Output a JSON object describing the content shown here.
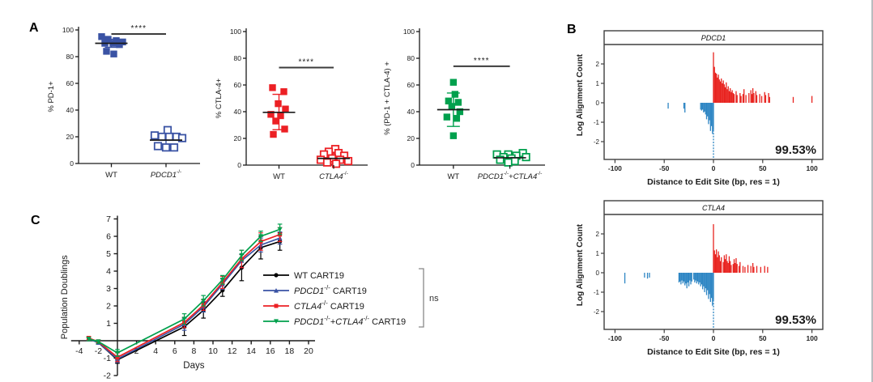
{
  "page": {
    "background": "#ffffff"
  },
  "panel_labels": {
    "A": "A",
    "B": "B",
    "C": "C"
  },
  "colors": {
    "blue": "#3a53a4",
    "red": "#ec2024",
    "green": "#00a04d",
    "hist_pos": "#e8231f",
    "hist_neg": "#2e86c4",
    "axis": "#1a1a1a",
    "sig_line": "#3c3c3c",
    "black": "#000000"
  },
  "chart_data": [
    {
      "id": "pd1-scatter",
      "type": "scatter",
      "ylabel": "% PD-1+",
      "ylim": [
        0,
        100
      ],
      "yticks": [
        0,
        20,
        40,
        60,
        80,
        100
      ],
      "color": "#3a53a4",
      "significance": {
        "label": "****",
        "line_y": 97
      },
      "groups": [
        {
          "label_parts": [
            {
              "t": "WT"
            }
          ],
          "filled": true,
          "mean": 90,
          "err_top": 93,
          "err_bot": 87,
          "points": [
            [
              95,
              -12
            ],
            [
              93,
              -4
            ],
            [
              92,
              6
            ],
            [
              91,
              14
            ],
            [
              90,
              -8
            ],
            [
              90,
              2
            ],
            [
              89,
              10
            ],
            [
              84,
              -6
            ],
            [
              82,
              3
            ]
          ]
        },
        {
          "label_parts": [
            {
              "t": "PDCD1",
              "i": true
            },
            {
              "t": "-/-",
              "sup": true
            }
          ],
          "filled": false,
          "mean": 17.5,
          "err_top": 22,
          "err_bot": 13,
          "points": [
            [
              25,
              2
            ],
            [
              21,
              -14
            ],
            [
              20,
              -5
            ],
            [
              20,
              4
            ],
            [
              20,
              13
            ],
            [
              19,
              20
            ],
            [
              13,
              -10
            ],
            [
              12,
              0
            ],
            [
              12,
              10
            ]
          ]
        }
      ]
    },
    {
      "id": "ctla4-scatter",
      "type": "scatter",
      "ylabel": "% CTLA-4+",
      "ylim": [
        0,
        100
      ],
      "yticks": [
        0,
        20,
        40,
        60,
        80,
        100
      ],
      "color": "#ec2024",
      "significance": {
        "label": "****",
        "line_y": 73
      },
      "groups": [
        {
          "label_parts": [
            {
              "t": "WT"
            }
          ],
          "filled": true,
          "mean": 39.5,
          "err_top": 53,
          "err_bot": 26.5,
          "points": [
            [
              58,
              -8
            ],
            [
              55,
              6
            ],
            [
              46,
              -1
            ],
            [
              42,
              8
            ],
            [
              38,
              -10
            ],
            [
              37,
              2
            ],
            [
              33,
              -4
            ],
            [
              27,
              7
            ],
            [
              23,
              -7
            ]
          ]
        },
        {
          "label_parts": [
            {
              "t": "CTLA4",
              "i": true
            },
            {
              "t": "-/-",
              "sup": true
            }
          ],
          "filled": false,
          "mean": 5,
          "err_top": 9,
          "err_bot": 1,
          "points": [
            [
              12,
              2
            ],
            [
              10,
              -6
            ],
            [
              9,
              6
            ],
            [
              8,
              -12
            ],
            [
              7,
              13
            ],
            [
              5,
              -2
            ],
            [
              4,
              -16
            ],
            [
              4,
              8
            ],
            [
              3,
              18
            ],
            [
              2,
              -8
            ],
            [
              1,
              3
            ]
          ]
        }
      ]
    },
    {
      "id": "double-ko-scatter",
      "type": "scatter",
      "ylabel": "% (PD-1 + CTLA-4) +",
      "ylim": [
        0,
        100
      ],
      "yticks": [
        0,
        20,
        40,
        60,
        80,
        100
      ],
      "color": "#00a04d",
      "significance": {
        "label": "****",
        "line_y": 74
      },
      "groups": [
        {
          "label_parts": [
            {
              "t": "WT"
            }
          ],
          "filled": true,
          "mean": 41.5,
          "err_top": 54,
          "err_bot": 29,
          "points": [
            [
              62,
              0
            ],
            [
              53,
              2
            ],
            [
              48,
              -6
            ],
            [
              47,
              6
            ],
            [
              44,
              -2
            ],
            [
              40,
              8
            ],
            [
              36,
              -8
            ],
            [
              35,
              4
            ],
            [
              22,
              0
            ]
          ]
        },
        {
          "label_parts": [
            {
              "t": "PDCD1",
              "i": true
            },
            {
              "t": "-/-",
              "sup": true
            },
            {
              "t": "+"
            },
            {
              "t": "CTLA4",
              "i": true
            },
            {
              "t": "-/-",
              "sup": true
            }
          ],
          "filled": false,
          "mean": 5.5,
          "err_top": 8.5,
          "err_bot": 2.5,
          "points": [
            [
              9,
              16
            ],
            [
              8,
              -16
            ],
            [
              8,
              -2
            ],
            [
              7,
              8
            ],
            [
              6,
              -8
            ],
            [
              6,
              20
            ],
            [
              5,
              2
            ],
            [
              4,
              -12
            ],
            [
              3,
              6
            ],
            [
              2,
              -2
            ]
          ]
        }
      ]
    },
    {
      "id": "pdcd1-hist",
      "type": "hist",
      "title": "PDCD1",
      "ylabel": "Log Alignment Count",
      "xlabel": "Distance to Edit Site (bp, res = 1)",
      "annotation": "99.53%",
      "xlim": [
        -110,
        112
      ],
      "xticks": [
        -100,
        -50,
        0,
        50,
        100
      ],
      "yticks": [
        2,
        1,
        0,
        -1,
        -2
      ],
      "pos_color": "#e8231f",
      "neg_color": "#2e86c4",
      "pos_bars": [
        [
          0,
          2.6
        ],
        [
          1,
          1.85
        ],
        [
          2,
          1.55
        ],
        [
          3,
          1.5
        ],
        [
          4,
          1.3
        ],
        [
          5,
          1.45
        ],
        [
          6,
          1.2
        ],
        [
          7,
          1.1
        ],
        [
          8,
          1.25
        ],
        [
          9,
          1.0
        ],
        [
          10,
          1.15
        ],
        [
          11,
          0.95
        ],
        [
          12,
          0.8
        ],
        [
          13,
          1.05
        ],
        [
          14,
          0.7
        ],
        [
          15,
          0.85
        ],
        [
          16,
          0.6
        ],
        [
          17,
          0.75
        ],
        [
          18,
          0.55
        ],
        [
          19,
          0.65
        ],
        [
          20,
          0.5
        ],
        [
          21,
          0.45
        ],
        [
          23,
          0.6
        ],
        [
          24,
          0.4
        ],
        [
          27,
          0.5
        ],
        [
          28,
          0.35
        ],
        [
          30,
          0.45
        ],
        [
          31,
          0.7
        ],
        [
          33,
          0.4
        ],
        [
          36,
          0.5
        ],
        [
          38,
          0.65
        ],
        [
          39,
          0.45
        ],
        [
          40,
          0.75
        ],
        [
          41,
          0.5
        ],
        [
          43,
          0.6
        ],
        [
          44,
          0.4
        ],
        [
          47,
          0.45
        ],
        [
          49,
          0.35
        ],
        [
          52,
          0.55
        ],
        [
          53,
          0.4
        ],
        [
          56,
          0.5
        ],
        [
          57,
          0.3
        ],
        [
          81,
          0.3
        ],
        [
          100,
          0.35
        ]
      ],
      "neg_bars": [
        [
          0,
          -2.85
        ],
        [
          -1,
          -1.6
        ],
        [
          -2,
          -1.2
        ],
        [
          -3,
          -1.45
        ],
        [
          -4,
          -0.9
        ],
        [
          -5,
          -1.1
        ],
        [
          -6,
          -0.7
        ],
        [
          -7,
          -0.85
        ],
        [
          -8,
          -0.6
        ],
        [
          -9,
          -0.45
        ],
        [
          -10,
          -0.5
        ],
        [
          -11,
          -0.35
        ],
        [
          -12,
          -0.4
        ],
        [
          -13,
          -0.35
        ],
        [
          -29,
          -0.5
        ],
        [
          -30,
          -0.3
        ],
        [
          -46,
          -0.3
        ]
      ]
    },
    {
      "id": "ctla4-hist",
      "type": "hist",
      "title": "CTLA4",
      "ylabel": "Log Alignment Count",
      "xlabel": "Distance to Edit Site (bp, res = 1)",
      "annotation": "99.53%",
      "xlim": [
        -110,
        112
      ],
      "xticks": [
        -100,
        -50,
        0,
        50,
        100
      ],
      "yticks": [
        2,
        1,
        0,
        -1,
        -2
      ],
      "pos_color": "#e8231f",
      "neg_color": "#2e86c4",
      "pos_bars": [
        [
          0,
          2.5
        ],
        [
          1,
          1.15
        ],
        [
          2,
          0.95
        ],
        [
          3,
          1.2
        ],
        [
          4,
          0.8
        ],
        [
          5,
          1.1
        ],
        [
          6,
          0.9
        ],
        [
          7,
          0.6
        ],
        [
          8,
          0.8
        ],
        [
          10,
          0.55
        ],
        [
          11,
          0.9
        ],
        [
          12,
          0.7
        ],
        [
          13,
          0.95
        ],
        [
          14,
          0.6
        ],
        [
          15,
          0.5
        ],
        [
          16,
          0.85
        ],
        [
          17,
          0.6
        ],
        [
          18,
          0.4
        ],
        [
          20,
          0.45
        ],
        [
          21,
          0.7
        ],
        [
          22,
          0.5
        ],
        [
          23,
          0.75
        ],
        [
          24,
          0.45
        ],
        [
          26,
          0.35
        ],
        [
          27,
          0.55
        ],
        [
          30,
          0.35
        ],
        [
          32,
          0.3
        ],
        [
          35,
          0.4
        ],
        [
          38,
          0.35
        ],
        [
          40,
          0.5
        ],
        [
          41,
          0.3
        ],
        [
          44,
          0.35
        ],
        [
          48,
          0.3
        ],
        [
          52,
          0.35
        ],
        [
          55,
          0.3
        ]
      ],
      "neg_bars": [
        [
          0,
          -2.9
        ],
        [
          -1,
          -1.7
        ],
        [
          -2,
          -1.3
        ],
        [
          -3,
          -1.5
        ],
        [
          -4,
          -1.1
        ],
        [
          -5,
          -1.35
        ],
        [
          -6,
          -0.9
        ],
        [
          -7,
          -1.15
        ],
        [
          -8,
          -0.8
        ],
        [
          -9,
          -1.0
        ],
        [
          -10,
          -0.7
        ],
        [
          -11,
          -0.85
        ],
        [
          -12,
          -0.6
        ],
        [
          -13,
          -0.7
        ],
        [
          -14,
          -0.5
        ],
        [
          -15,
          -0.6
        ],
        [
          -16,
          -0.45
        ],
        [
          -17,
          -0.55
        ],
        [
          -18,
          -0.4
        ],
        [
          -19,
          -0.5
        ],
        [
          -20,
          -0.35
        ],
        [
          -22,
          -0.45
        ],
        [
          -23,
          -0.6
        ],
        [
          -24,
          -0.4
        ],
        [
          -25,
          -0.7
        ],
        [
          -26,
          -0.5
        ],
        [
          -27,
          -0.8
        ],
        [
          -28,
          -0.55
        ],
        [
          -29,
          -0.65
        ],
        [
          -30,
          -0.45
        ],
        [
          -31,
          -0.55
        ],
        [
          -32,
          -0.4
        ],
        [
          -33,
          -0.6
        ],
        [
          -34,
          -0.45
        ],
        [
          -35,
          -0.5
        ],
        [
          -65,
          -0.25
        ],
        [
          -67,
          -0.3
        ],
        [
          -70,
          -0.25
        ],
        [
          -90,
          -0.55
        ]
      ]
    },
    {
      "id": "growth-line",
      "type": "line",
      "ylabel": "Population Doublings",
      "xlabel": "Days",
      "xlim": [
        -4,
        20
      ],
      "ylim": [
        -2,
        7
      ],
      "xticks": [
        -4,
        -2,
        2,
        4,
        6,
        8,
        10,
        12,
        14,
        16,
        18,
        20
      ],
      "yticks": [
        -2,
        -1,
        1,
        2,
        3,
        4,
        5,
        6,
        7
      ],
      "x": [
        -3,
        -2,
        0,
        7,
        9,
        11,
        13,
        15,
        17
      ],
      "series": [
        {
          "name_parts": [
            {
              "t": "WT CART19"
            }
          ],
          "color": "#000000",
          "marker": "circle",
          "values": [
            0.1,
            -0.1,
            -1.1,
            0.8,
            1.75,
            2.9,
            4.2,
            5.35,
            5.7
          ],
          "errors": [
            0.1,
            0.1,
            0.2,
            0.5,
            0.45,
            0.35,
            0.75,
            0.65,
            0.5
          ]
        },
        {
          "name_parts": [
            {
              "t": "PDCD1",
              "i": true
            },
            {
              "t": "-/-",
              "sup": true
            },
            {
              "t": " CART19"
            }
          ],
          "color": "#3a53a4",
          "marker": "triangle",
          "values": [
            0.1,
            -0.1,
            -1.05,
            0.95,
            1.95,
            3.25,
            4.6,
            5.5,
            5.9
          ],
          "errors": [
            0.1,
            0.1,
            0.2,
            0.35,
            0.3,
            0.3,
            0.4,
            0.4,
            0.35
          ]
        },
        {
          "name_parts": [
            {
              "t": "CTLA4",
              "i": true
            },
            {
              "t": "-/-",
              "sup": true
            },
            {
              "t": " CART19"
            }
          ],
          "color": "#ec2024",
          "marker": "square",
          "values": [
            0.15,
            -0.05,
            -0.95,
            1.05,
            2.05,
            3.35,
            4.7,
            5.7,
            6.1
          ],
          "errors": [
            0.1,
            0.1,
            0.25,
            0.3,
            0.3,
            0.35,
            0.5,
            0.5,
            0.4
          ]
        },
        {
          "name_parts": [
            {
              "t": "PDCD1",
              "i": true
            },
            {
              "t": "-/-",
              "sup": true
            },
            {
              "t": "+"
            },
            {
              "t": "CTLA4",
              "i": true
            },
            {
              "t": "-/-",
              "sup": true
            },
            {
              "t": " CART19"
            }
          ],
          "color": "#00a04d",
          "marker": "triangle-down",
          "values": [
            0.1,
            -0.05,
            -0.7,
            1.25,
            2.3,
            3.5,
            4.9,
            6.0,
            6.4
          ],
          "errors": [
            0.1,
            0.1,
            0.2,
            0.3,
            0.3,
            0.25,
            0.3,
            0.3,
            0.3
          ]
        }
      ],
      "ns_label": "ns"
    }
  ]
}
